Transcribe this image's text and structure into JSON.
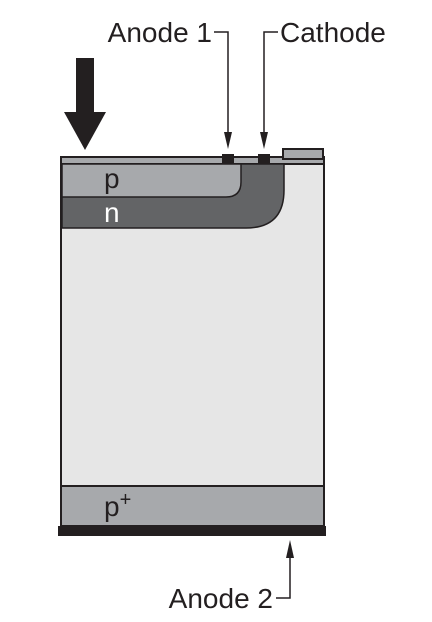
{
  "labels": {
    "anode1": "Anode 1",
    "cathode": "Cathode",
    "anode2": "Anode 2",
    "p_region": "p",
    "n_region": "n",
    "pplus_base": "p",
    "pplus_sup": "+"
  },
  "colors": {
    "substrate": "#e6e6e6",
    "p_region": "#a7a9ac",
    "n_region": "#636466",
    "pplus_region": "#a7a9ac",
    "outline": "#231f20",
    "contact": "#231f20",
    "oxide": "#a7a9ac"
  },
  "icons": {
    "incident_light": "down-arrow-icon"
  }
}
